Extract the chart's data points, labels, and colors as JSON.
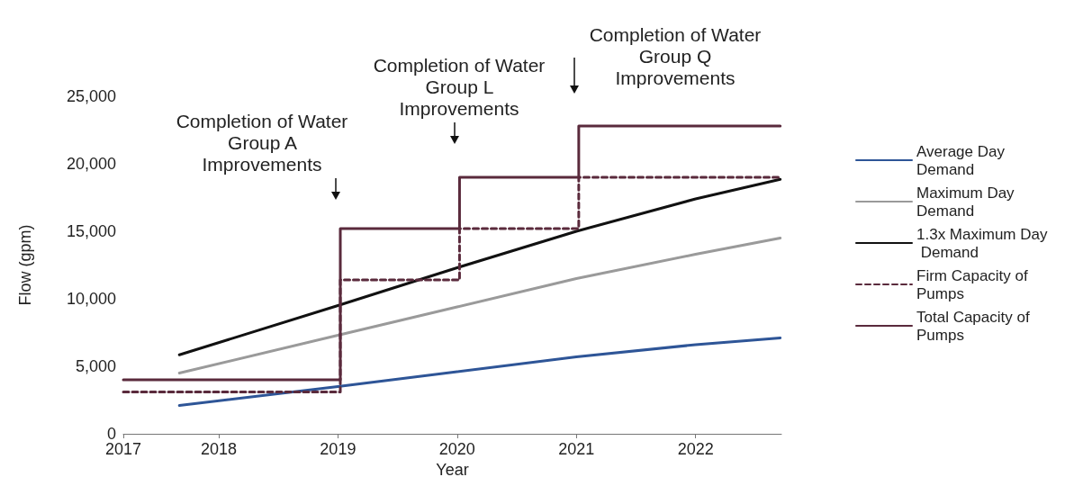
{
  "chart_data": {
    "type": "line",
    "xlabel": "Year",
    "ylabel": "Flow (gpm)",
    "xlim": [
      2017.2,
      2022.72
    ],
    "xticks": [
      {
        "value": 2017.2,
        "label": "2017"
      },
      {
        "value": 2018,
        "label": "2018"
      },
      {
        "value": 2019,
        "label": "2019"
      },
      {
        "value": 2020,
        "label": "2020"
      },
      {
        "value": 2021,
        "label": "2021"
      },
      {
        "value": 2022,
        "label": "2022"
      }
    ],
    "ylim": [
      0,
      25000
    ],
    "yticks": [
      0,
      {
        "value": 5000,
        "label": "5,000"
      },
      {
        "value": 10000,
        "label": "10,000"
      },
      {
        "value": 15000,
        "label": "15,000"
      },
      {
        "value": 20000,
        "label": "20,000"
      },
      {
        "value": 25000,
        "label": "25,000"
      }
    ],
    "grid": false,
    "legend": "right",
    "marker": "none",
    "series": [
      {
        "name": "Average Day Demand",
        "color": "#2e5597",
        "line_style": "solid",
        "x": [
          2017.67,
          2019,
          2020,
          2021,
          2022,
          2022.71
        ],
        "values": [
          2100,
          3500,
          4600,
          5700,
          6600,
          7100
        ]
      },
      {
        "name": "Maximum Day Demand",
        "color": "#9a9a9a",
        "line_style": "solid",
        "x": [
          2017.67,
          2019,
          2020,
          2021,
          2022,
          2022.71
        ],
        "values": [
          4500,
          7300,
          9400,
          11500,
          13300,
          14500
        ]
      },
      {
        "name": "1.3x Maximum Day Demand",
        "color": "#111111",
        "line_style": "solid",
        "x": [
          2017.67,
          2019,
          2020,
          2021,
          2022,
          2022.71
        ],
        "values": [
          5850,
          9500,
          12300,
          15000,
          17400,
          18850
        ]
      },
      {
        "name": "Firm Capacity of Pumps",
        "color": "#5a2a3c",
        "type": "step",
        "line_style": "dashed",
        "x": [
          2017.2,
          2019.02,
          2020.02,
          2021.02,
          2022.71
        ],
        "values": [
          3100,
          11400,
          15200,
          19000,
          19000
        ]
      },
      {
        "name": "Total Capacity of Pumps",
        "color": "#5a2a3c",
        "type": "step",
        "line_style": "solid",
        "x": [
          2017.2,
          2019.02,
          2020.02,
          2021.02,
          2022.71
        ],
        "values": [
          4000,
          15200,
          19000,
          22800,
          22800
        ]
      }
    ],
    "annotations": [
      "Completion of Water Group A Improvements",
      "Completion of Water Group L Improvements",
      "Completion of Water Group Q Improvements"
    ]
  }
}
